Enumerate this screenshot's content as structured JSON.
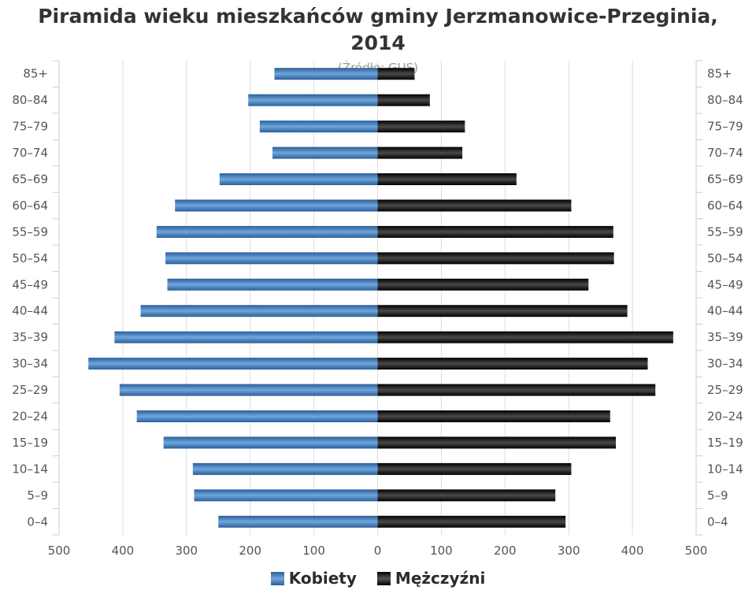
{
  "title_line1": "Piramida wieku mieszkańców gminy Jerzmanowice-Przeginia,",
  "title_line2": "2014",
  "subtitle": "(Źródło: GUS)",
  "legend": {
    "female": "Kobiety",
    "male": "Mężczyźni"
  },
  "colors": {
    "female": "#3f7cc0",
    "male": "#111111",
    "grid": "#dddddd",
    "text": "#555555"
  },
  "chart_data": {
    "type": "bar",
    "orientation": "horizontal-population-pyramid",
    "title": "Piramida wieku mieszkańców gminy Jerzmanowice-Przeginia, 2014",
    "subtitle": "(Źródło: GUS)",
    "categories": [
      "85+",
      "80-84",
      "75-79",
      "70-74",
      "65-69",
      "60-64",
      "55-59",
      "50-54",
      "45-49",
      "40-44",
      "35-39",
      "30-34",
      "25-29",
      "20-24",
      "15-19",
      "10-14",
      "5-9",
      "0-4"
    ],
    "series": [
      {
        "name": "Kobiety",
        "values": [
          162,
          203,
          185,
          165,
          248,
          318,
          347,
          333,
          330,
          372,
          413,
          454,
          405,
          378,
          336,
          290,
          288,
          250
        ]
      },
      {
        "name": "Mężczyźni",
        "values": [
          58,
          82,
          137,
          133,
          218,
          304,
          370,
          371,
          331,
          392,
          464,
          424,
          436,
          365,
          374,
          304,
          279,
          295
        ]
      }
    ],
    "x_ticks": [
      "500",
      "400",
      "300",
      "200",
      "100",
      "0",
      "100",
      "200",
      "300",
      "400",
      "500"
    ],
    "xlim": [
      -500,
      500
    ],
    "grid": true,
    "legend_position": "bottom"
  }
}
